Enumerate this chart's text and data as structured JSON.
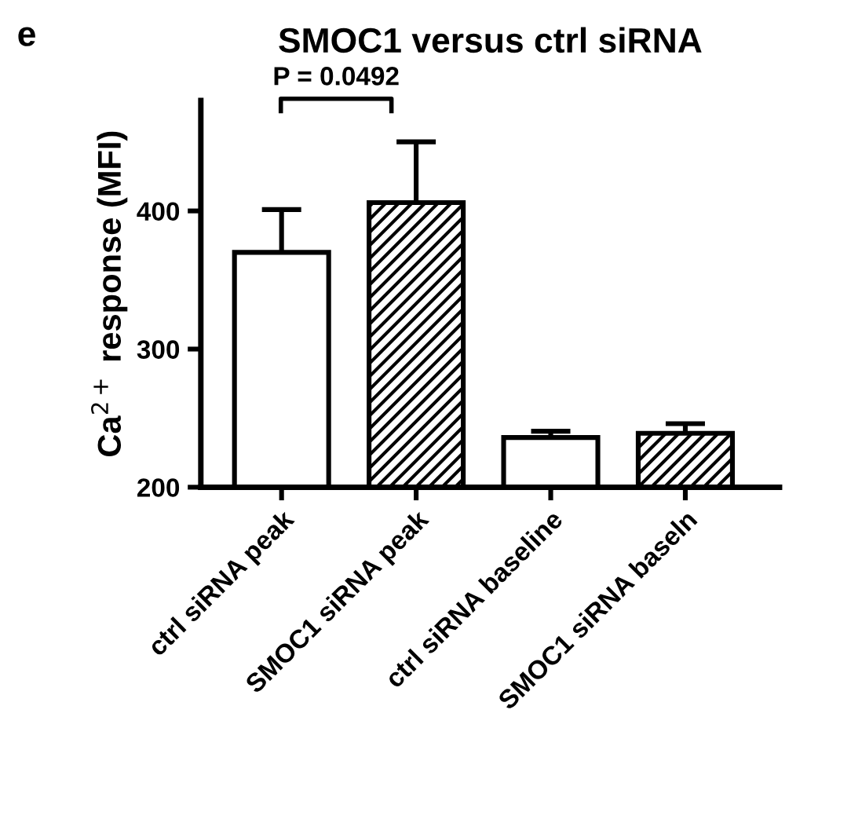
{
  "chart_data": {
    "type": "bar",
    "title": "SMOC1 versus ctrl siRNA",
    "ylabel": "Ca$^{2+}$ response (MFI)",
    "categories": [
      "ctrl siRNA peak",
      "SMOC1 siRNA peak",
      "ctrl siRNA baseline",
      "SMOC1 siRNA baseln"
    ],
    "series": [
      {
        "color": "#ffffff",
        "values": [
          370,
          null,
          236,
          null
        ],
        "errors": [
          31,
          null,
          4.5,
          null
        ]
      },
      {
        "color": "#000000",
        "values": [
          null,
          406,
          null,
          239
        ],
        "errors": [
          null,
          44,
          null,
          7
        ]
      }
    ],
    "ylim": [
      200,
      480
    ],
    "yticks": [
      200,
      300,
      400
    ],
    "grid": false,
    "legend": false,
    "annotations": [
      "e",
      "P = 0.0492"
    ]
  }
}
